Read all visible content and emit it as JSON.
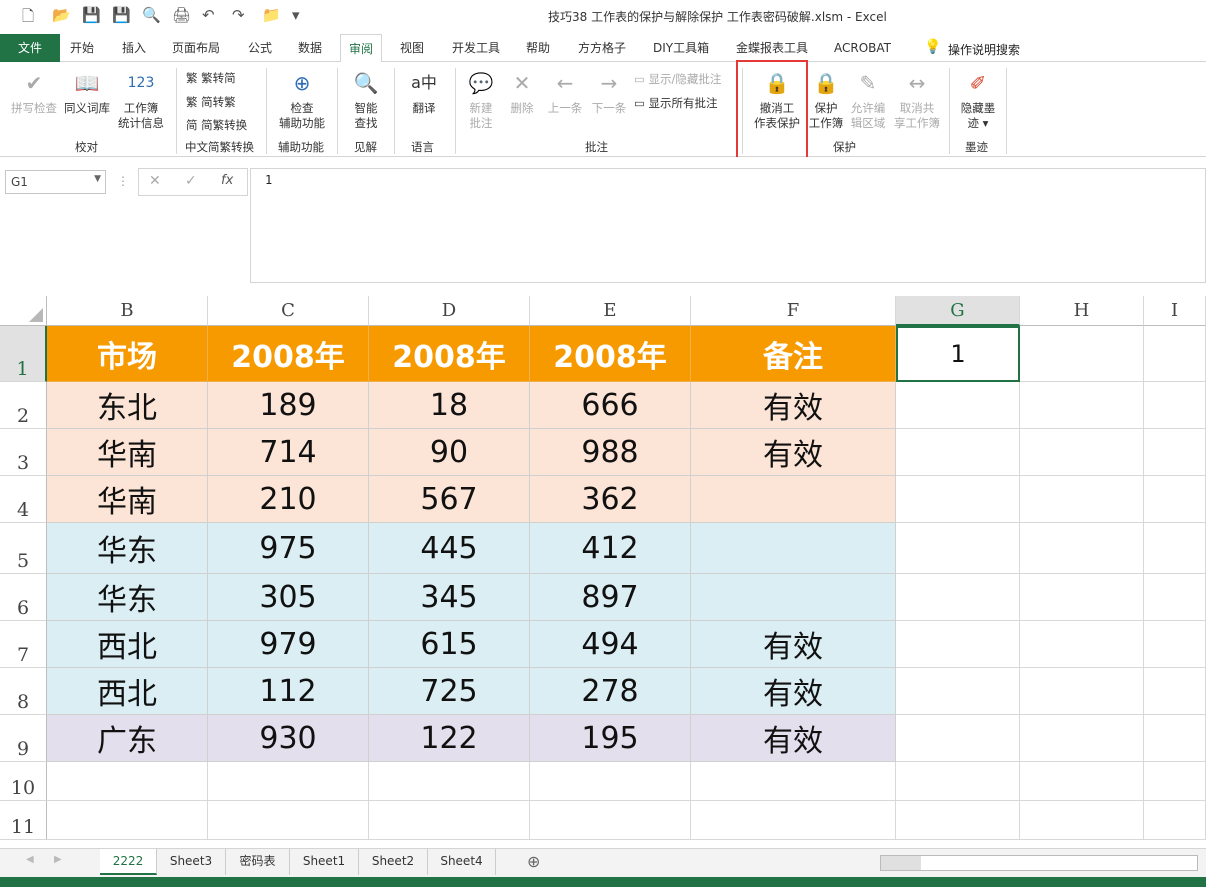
{
  "title": "技巧38  工作表的保护与解除保护 工作表密码破解.xlsm  -  Excel",
  "quick_access": [
    "new-icon",
    "open-icon",
    "save-icon",
    "save-as-icon",
    "print-preview-icon",
    "print-icon",
    "undo-icon",
    "redo-icon",
    "folder-icon",
    "customize-icon"
  ],
  "tabs": [
    "文件",
    "开始",
    "插入",
    "页面布局",
    "公式",
    "数据",
    "审阅",
    "视图",
    "开发工具",
    "帮助",
    "方方格子",
    "DIY工具箱",
    "金蝶报表工具",
    "ACROBAT"
  ],
  "active_tab": "审阅",
  "tell_me": "操作说明搜索",
  "ribbon": {
    "proofing": {
      "spell": "拼写检查",
      "thesaurus": "同义词库",
      "stats1": "工作簿",
      "stats2": "统计信息",
      "group": "校对"
    },
    "chinese": {
      "t2s": "繁转简",
      "s2t": "简转繁",
      "convert": "简繁转换",
      "group": "中文简繁转换"
    },
    "access": {
      "l1": "检查",
      "l2": "辅助功能",
      "group": "辅助功能"
    },
    "insights": {
      "l1": "智能",
      "l2": "查找",
      "group": "见解"
    },
    "language": {
      "l1": "翻译",
      "group": "语言"
    },
    "comments": {
      "new1": "新建",
      "new2": "批注",
      "delete": "删除",
      "prev": "上一条",
      "next": "下一条",
      "show_hide": "显示/隐藏批注",
      "show_all": "显示所有批注",
      "group": "批注"
    },
    "protect": {
      "unprotect1": "撤消工",
      "unprotect2": "作表保护",
      "wb1": "保护",
      "wb2": "工作簿",
      "allow1": "允许编",
      "allow2": "辑区域",
      "unshare1": "取消共",
      "unshare2": "享工作簿",
      "group": "保护"
    },
    "ink": {
      "l1": "隐藏墨",
      "l2": "迹 ▾",
      "group": "墨迹"
    }
  },
  "name_box": "G1",
  "formula": "1",
  "columns": [
    "B",
    "C",
    "D",
    "E",
    "F",
    "G",
    "H",
    "I"
  ],
  "selected_column": "G",
  "rows": [
    "1",
    "2",
    "3",
    "4",
    "5",
    "6",
    "7",
    "8",
    "9",
    "10",
    "11"
  ],
  "table": [
    [
      "市场",
      "2008年",
      "2008年",
      "2008年",
      "备注"
    ],
    [
      "东北",
      "189",
      "18",
      "666",
      "有效"
    ],
    [
      "华南",
      "714",
      "90",
      "988",
      "有效"
    ],
    [
      "华南",
      "210",
      "567",
      "362",
      ""
    ],
    [
      "华东",
      "975",
      "445",
      "412",
      ""
    ],
    [
      "华东",
      "305",
      "345",
      "897",
      ""
    ],
    [
      "西北",
      "979",
      "615",
      "494",
      "有效"
    ],
    [
      "西北",
      "112",
      "725",
      "278",
      "有效"
    ],
    [
      "广东",
      "930",
      "122",
      "195",
      "有效"
    ]
  ],
  "g1_value": "1",
  "colors": {
    "header": "#F79A00",
    "peach": "#FCE4D6",
    "blue": "#DAEEF3",
    "lavender": "#E4DFEC",
    "excel_green": "#217346",
    "highlight": "#E53935"
  },
  "sheets": [
    "2222",
    "Sheet3",
    "密码表",
    "Sheet1",
    "Sheet2",
    "Sheet4"
  ],
  "active_sheet": "2222"
}
